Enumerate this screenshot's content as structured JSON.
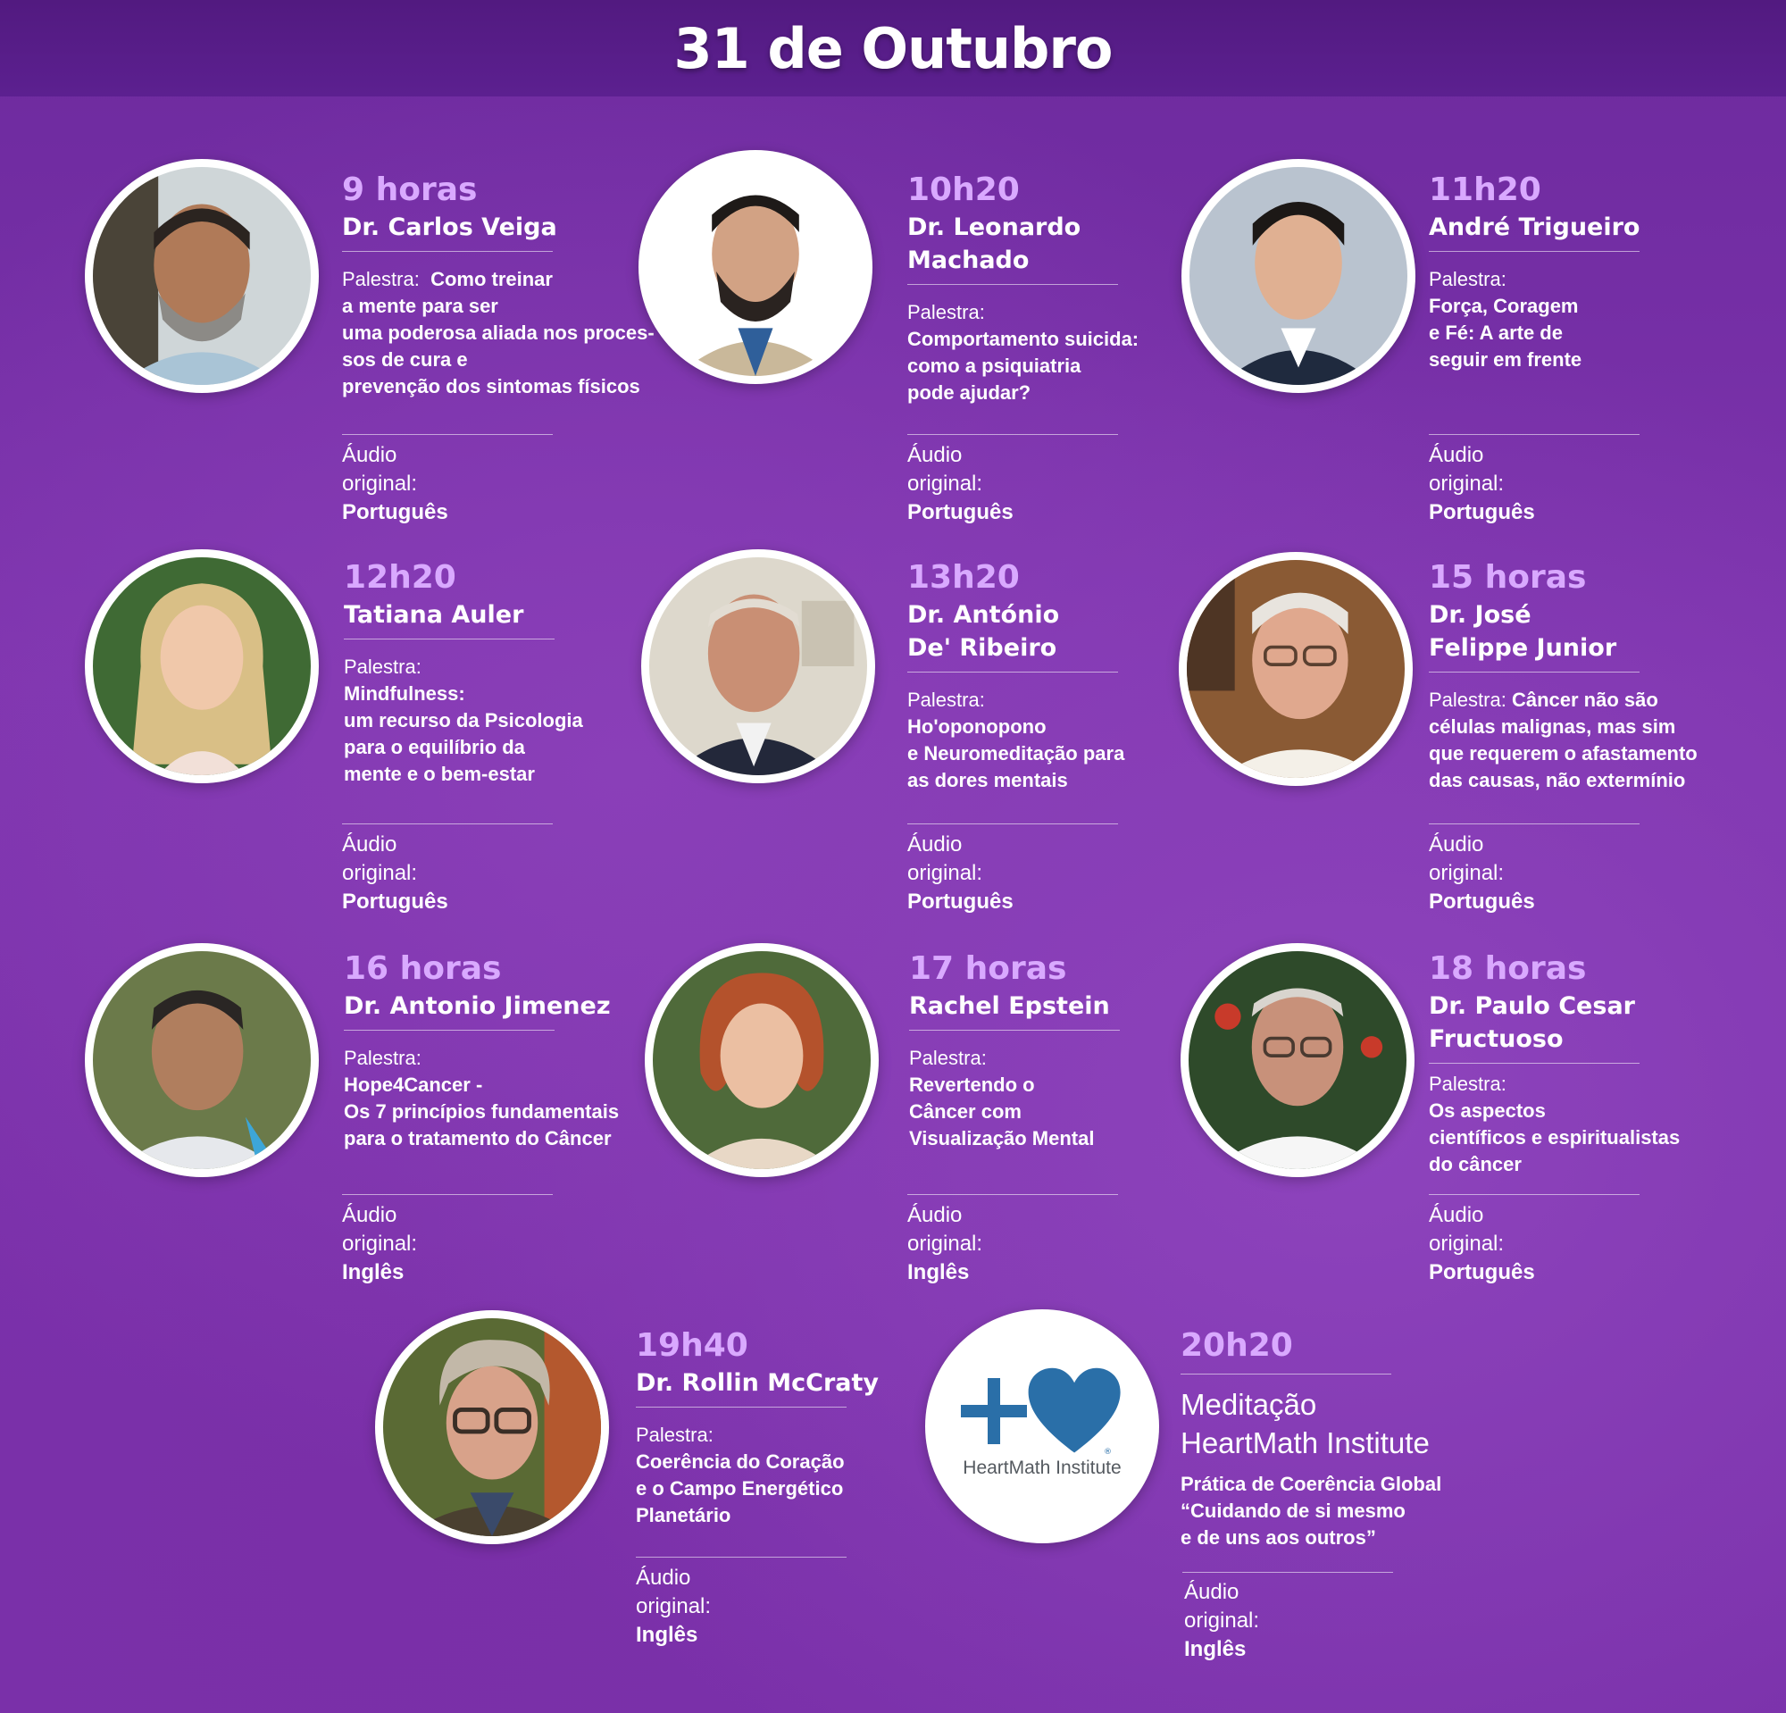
{
  "header": {
    "title": "31 de Outubro"
  },
  "labels": {
    "lecture": "Palestra:",
    "audio": "Áudio original:"
  },
  "speakers": [
    {
      "time": "9 horas",
      "name": [
        "Dr. Carlos Veiga"
      ],
      "lecture_inline": "Como treinar",
      "lecture": [
        "a mente para ser",
        "uma poderosa aliada nos proces-",
        "sos de cura e",
        "prevenção dos sintomas físicos"
      ],
      "audio": "Português"
    },
    {
      "time": "10h20",
      "name": [
        "Dr. Leonardo",
        "Machado"
      ],
      "lecture": [
        "Comportamento suicida:",
        "como a psiquiatria",
        "pode ajudar?"
      ],
      "audio": "Português"
    },
    {
      "time": "11h20",
      "name": [
        "André Trigueiro"
      ],
      "lecture": [
        "Força, Coragem",
        "e Fé: A arte de",
        "seguir em frente"
      ],
      "audio": "Português"
    },
    {
      "time": "12h20",
      "name": [
        "Tatiana Auler"
      ],
      "lecture": [
        "Mindfulness:",
        "um recurso da Psicologia",
        "para o equilíbrio da",
        "mente e o bem-estar"
      ],
      "audio": "Português"
    },
    {
      "time": "13h20",
      "name": [
        "Dr. António",
        "De' Ribeiro"
      ],
      "lecture": [
        "Ho'oponopono",
        "e Neuromeditação para",
        "as dores mentais"
      ],
      "audio": "Português"
    },
    {
      "time": "15 horas",
      "name": [
        "Dr. José",
        "Felippe Junior"
      ],
      "lecture_inline": "Câncer não são",
      "lecture": [
        "células malignas, mas sim",
        "que requerem o afastamento",
        "das causas, não extermínio"
      ],
      "audio": "Português"
    },
    {
      "time": "16 horas",
      "name": [
        "Dr. Antonio Jimenez"
      ],
      "lecture": [
        "Hope4Cancer -",
        "Os 7 princípios fundamentais",
        "para o tratamento do Câncer"
      ],
      "audio": "Inglês"
    },
    {
      "time": "17 horas",
      "name": [
        "Rachel Epstein"
      ],
      "lecture": [
        "Revertendo o",
        "Câncer com",
        "Visualização Mental"
      ],
      "audio": "Inglês"
    },
    {
      "time": "18 horas",
      "name": [
        "Dr. Paulo Cesar",
        "Fructuoso"
      ],
      "lecture": [
        "Os aspectos",
        "científicos e espiritualistas",
        "do câncer"
      ],
      "audio": "Português"
    },
    {
      "time": "19h40",
      "name": [
        "Dr. Rollin McCraty"
      ],
      "lecture": [
        "Coerência do Coração",
        "e o Campo Energético",
        "Planetário"
      ],
      "audio": "Inglês"
    }
  ],
  "meditation": {
    "time": "20h20",
    "title": [
      "Meditação",
      "HeartMath Institute"
    ],
    "description": [
      "Prática de Coerência Global",
      "“Cuidando de si mesmo",
      "e de uns aos outros”"
    ],
    "audio": "Inglês",
    "logo_text": "HeartMath Institute",
    "logo_mark": "®",
    "logo_color": "#2a6fa8"
  },
  "colors": {
    "accent_time": "#d9a9ff",
    "background": "#7a31aa",
    "header": "#521a80"
  }
}
